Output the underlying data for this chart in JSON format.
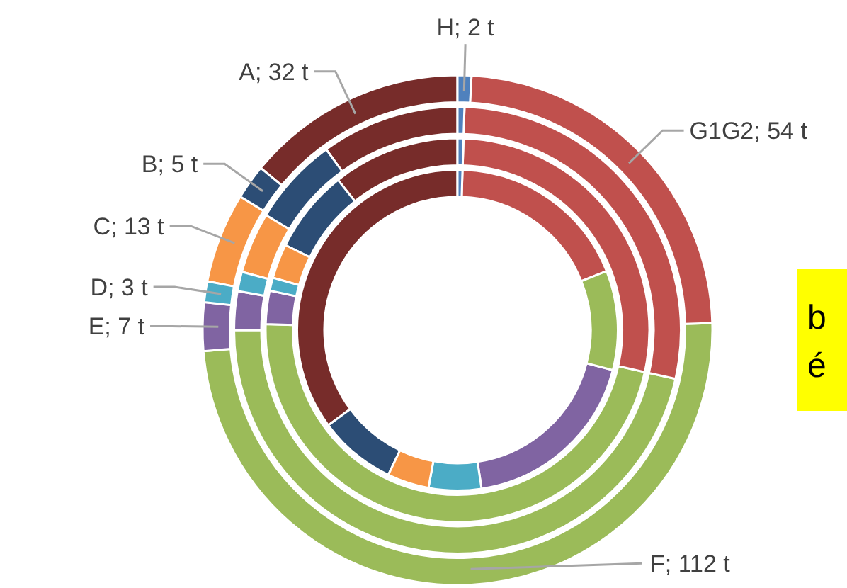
{
  "chart_data": {
    "type": "donut",
    "categories": [
      "H",
      "G1G2",
      "F",
      "E",
      "D",
      "C",
      "B",
      "A"
    ],
    "colors": [
      "#4f81bd",
      "#c0504d",
      "#9bbb59",
      "#8064a2",
      "#4bacc6",
      "#f79646",
      "#2c4d75",
      "#772c2a"
    ],
    "series": [
      {
        "values": [
          2,
          54,
          112,
          7,
          3,
          13,
          5,
          32
        ],
        "value_labels": [
          "2 t",
          "54 t",
          "112 t",
          "7 t",
          "3 t",
          "13 t",
          "5 t",
          "32 t"
        ]
      },
      {
        "values": [
          0.5,
          28.0,
          46.5,
          2.8,
          1.4,
          4.4,
          6.4,
          10.0
        ]
      },
      {
        "values": [
          0.5,
          28.0,
          47.0,
          2.8,
          1.1,
          2.9,
          7.0,
          10.7
        ]
      },
      {
        "values": [
          0.5,
          18.5,
          10.0,
          18.6,
          5.3,
          4.2,
          7.8,
          35.1
        ]
      }
    ],
    "annotations": [
      "b",
      "é"
    ]
  }
}
